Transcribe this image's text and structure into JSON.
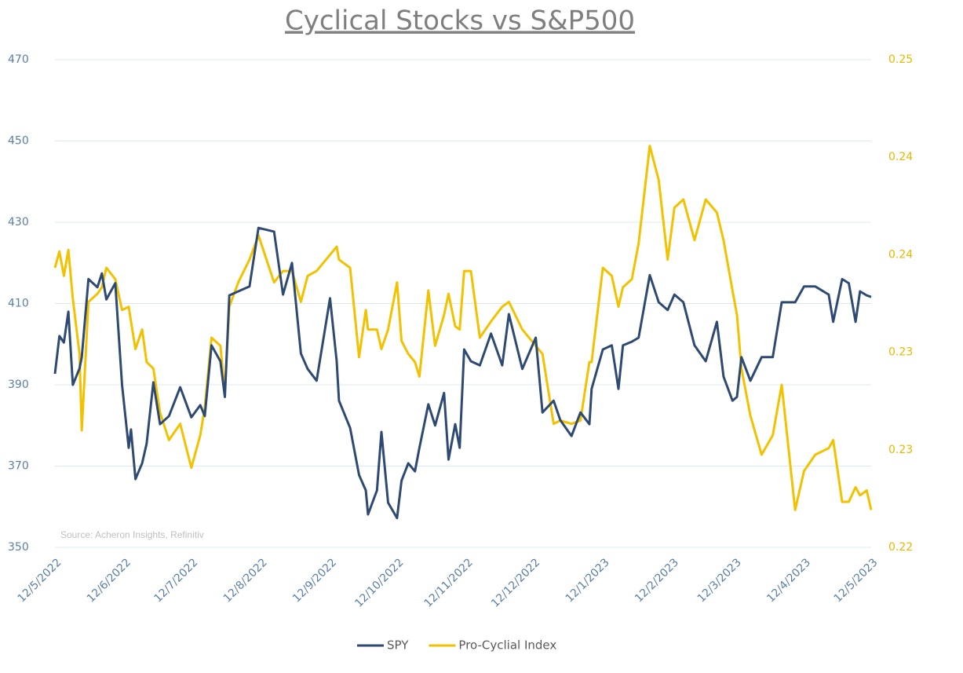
{
  "chart_data": {
    "type": "line",
    "title": "Cyclical Stocks vs S&P500",
    "annotation": "Source: Acheron Insights, Refinitiv",
    "grid": true,
    "legend": "bottom",
    "x": [
      "2022-05-12",
      "2022-05-14",
      "2022-05-16",
      "2022-05-18",
      "2022-05-20",
      "2022-05-23",
      "2022-05-24",
      "2022-05-27",
      "2022-05-31",
      "2022-06-02",
      "2022-06-04",
      "2022-06-08",
      "2022-06-11",
      "2022-06-14",
      "2022-06-15",
      "2022-06-17",
      "2022-06-20",
      "2022-06-22",
      "2022-06-25",
      "2022-06-28",
      "2022-07-02",
      "2022-07-07",
      "2022-07-12",
      "2022-07-16",
      "2022-07-18",
      "2022-07-21",
      "2022-07-25",
      "2022-07-27",
      "2022-07-29",
      "2022-08-02",
      "2022-08-07",
      "2022-08-11",
      "2022-08-18",
      "2022-08-22",
      "2022-08-26",
      "2022-08-30",
      "2022-09-02",
      "2022-09-06",
      "2022-09-12",
      "2022-09-15",
      "2022-09-16",
      "2022-09-21",
      "2022-09-25",
      "2022-09-28",
      "2022-09-29",
      "2022-10-03",
      "2022-10-05",
      "2022-10-08",
      "2022-10-12",
      "2022-10-14",
      "2022-10-17",
      "2022-10-20",
      "2022-10-22",
      "2022-10-26",
      "2022-10-29",
      "2022-11-02",
      "2022-11-04",
      "2022-11-07",
      "2022-11-09",
      "2022-11-11",
      "2022-11-14",
      "2022-11-18",
      "2022-11-23",
      "2022-11-28",
      "2022-12-01",
      "2022-12-07",
      "2022-12-13",
      "2022-12-16",
      "2022-12-21",
      "2022-12-24",
      "2022-12-29",
      "2023-01-02",
      "2023-01-06",
      "2023-01-07",
      "2023-01-12",
      "2023-01-16",
      "2023-01-19",
      "2023-01-21",
      "2023-01-25",
      "2023-01-28",
      "2023-02-02",
      "2023-02-06",
      "2023-02-10",
      "2023-02-13",
      "2023-02-17",
      "2023-02-22",
      "2023-02-27",
      "2023-03-04",
      "2023-03-07",
      "2023-03-11",
      "2023-03-13",
      "2023-03-15",
      "2023-03-19",
      "2023-03-24",
      "2023-03-29",
      "2023-04-02",
      "2023-04-08",
      "2023-04-12",
      "2023-04-17",
      "2023-04-23",
      "2023-04-25",
      "2023-04-29",
      "2023-05-02",
      "2023-05-05",
      "2023-05-07",
      "2023-05-10",
      "2023-05-12"
    ],
    "xlim": [
      "2022-05-12",
      "2023-05-12"
    ],
    "xticks": [
      {
        "value": "2022-05-12",
        "label": "12/5/2022"
      },
      {
        "value": "2022-06-12",
        "label": "12/6/2022"
      },
      {
        "value": "2022-07-12",
        "label": "12/7/2022"
      },
      {
        "value": "2022-08-12",
        "label": "12/8/2022"
      },
      {
        "value": "2022-09-12",
        "label": "12/9/2022"
      },
      {
        "value": "2022-10-12",
        "label": "12/10/2022"
      },
      {
        "value": "2022-11-12",
        "label": "12/11/2022"
      },
      {
        "value": "2022-12-12",
        "label": "12/12/2022"
      },
      {
        "value": "2023-01-12",
        "label": "12/1/2023"
      },
      {
        "value": "2023-02-12",
        "label": "12/2/2023"
      },
      {
        "value": "2023-03-12",
        "label": "12/3/2023"
      },
      {
        "value": "2023-04-12",
        "label": "12/4/2023"
      },
      {
        "value": "2023-05-12",
        "label": "12/5/2023"
      }
    ],
    "ylim": [
      350,
      470
    ],
    "yticks": [
      350,
      370,
      390,
      410,
      430,
      450,
      470
    ],
    "y2lim": [
      0.22,
      0.25
    ],
    "y2ticks": [
      0.22,
      {
        "value": 0.226,
        "label": "0.23"
      },
      {
        "value": 0.232,
        "label": "0.23"
      },
      {
        "value": 0.238,
        "label": "0.24"
      },
      {
        "value": 0.244,
        "label": "0.24"
      },
      0.25
    ],
    "series": [
      {
        "name": "SPY",
        "color": "#2e4a73",
        "values": [
          392.7,
          402,
          400.4,
          408,
          390,
          394,
          396.8,
          416,
          414,
          417.4,
          411,
          415,
          390,
          374.5,
          379,
          366.8,
          370.7,
          375.5,
          390.6,
          380.3,
          382.3,
          389.4,
          382,
          385,
          382.3,
          399.7,
          395.8,
          387,
          412,
          413,
          414.2,
          428.6,
          427.7,
          412.2,
          420,
          397.7,
          393.9,
          391,
          411.3,
          395.8,
          386.1,
          379.4,
          367.8,
          364,
          358.1,
          364,
          378.4,
          361,
          357.2,
          366.4,
          370.7,
          368.7,
          374.5,
          385.2,
          380,
          388,
          371.6,
          380.3,
          374.5,
          398.7,
          395.8,
          394.8,
          402.6,
          394.8,
          407.4,
          393.9,
          401.6,
          383.2,
          386.1,
          381.3,
          377.4,
          383.2,
          380.3,
          389,
          398.7,
          399.7,
          389,
          399.7,
          400.6,
          401.6,
          417,
          410.3,
          408.4,
          412.2,
          410.3,
          399.7,
          395.8,
          405.5,
          392,
          386.1,
          387,
          396.8,
          391,
          396.8,
          396.8,
          410.3,
          410.3,
          414.2,
          414.2,
          412.2,
          405.5,
          416,
          415,
          405.5,
          413,
          412,
          411.6
        ]
      },
      {
        "name": "Pro-Cyclial Index",
        "color": "#f2c200",
        "axis": "y2",
        "values": [
          0.2372,
          0.2382,
          0.2367,
          0.2383,
          0.2353,
          0.2319,
          0.2272,
          0.2351,
          0.2356,
          0.236,
          0.2372,
          0.2365,
          0.2346,
          0.2348,
          0.2339,
          0.2322,
          0.2334,
          0.2314,
          0.231,
          0.2283,
          0.2266,
          0.2276,
          0.2249,
          0.2269,
          0.2286,
          0.2329,
          0.2324,
          0.2295,
          0.2348,
          0.2363,
          0.2377,
          0.2392,
          0.2363,
          0.237,
          0.237,
          0.2351,
          0.2367,
          0.237,
          0.238,
          0.2385,
          0.2377,
          0.2372,
          0.2317,
          0.2346,
          0.2334,
          0.2334,
          0.2322,
          0.2334,
          0.2363,
          0.2327,
          0.2319,
          0.2314,
          0.2305,
          0.2358,
          0.2324,
          0.2343,
          0.2356,
          0.2336,
          0.2334,
          0.237,
          0.237,
          0.2329,
          0.2339,
          0.2348,
          0.2351,
          0.2334,
          0.2324,
          0.2319,
          0.2276,
          0.2278,
          0.2276,
          0.2278,
          0.2314,
          0.2314,
          0.2372,
          0.2367,
          0.2348,
          0.236,
          0.2365,
          0.2387,
          0.2447,
          0.2426,
          0.2377,
          0.2409,
          0.2414,
          0.2389,
          0.2414,
          0.2406,
          0.2389,
          0.2358,
          0.2343,
          0.231,
          0.2281,
          0.2257,
          0.2269,
          0.23,
          0.2223,
          0.2247,
          0.2257,
          0.2261,
          0.2266,
          0.2228,
          0.2228,
          0.2237,
          0.2232,
          0.2235,
          0.2223
        ]
      }
    ]
  }
}
